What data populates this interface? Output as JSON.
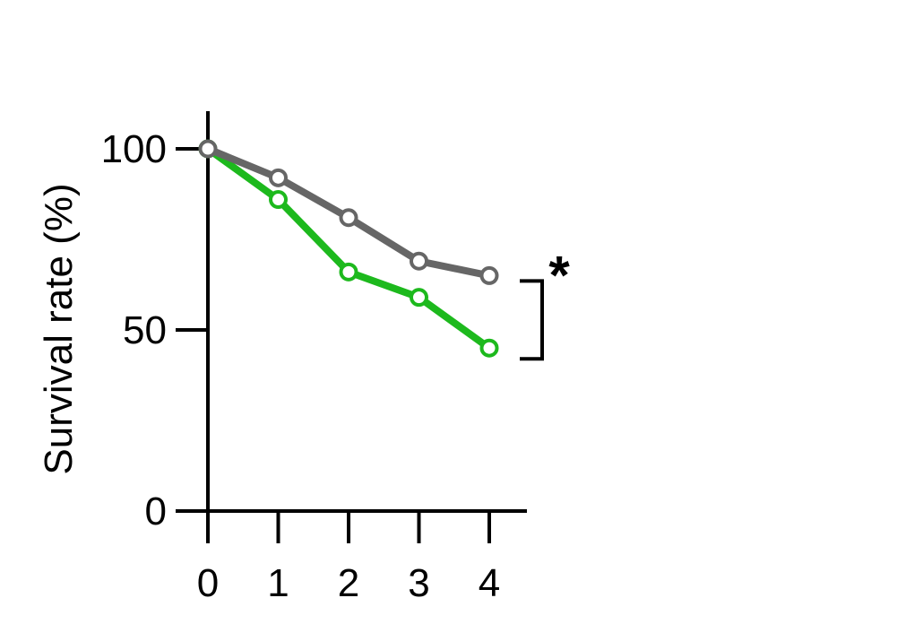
{
  "chart_data": {
    "type": "line",
    "title": "",
    "xlabel": "",
    "ylabel": "Survival rate (%)",
    "x": [
      0,
      1,
      2,
      3,
      4
    ],
    "xlim": [
      0,
      4
    ],
    "ylim": [
      0,
      100
    ],
    "xticks": [
      "0",
      "1",
      "2",
      "3",
      "4"
    ],
    "yticks": [
      "0",
      "50",
      "100"
    ],
    "yticks_values": [
      0,
      50,
      100
    ],
    "grid": false,
    "legend": "none",
    "series": [
      {
        "color": "#666666",
        "values": [
          100,
          92,
          81,
          69,
          65
        ]
      },
      {
        "color": "#1db91d",
        "values": [
          100,
          86,
          66,
          59,
          45
        ]
      }
    ],
    "significance": {
      "label": "*",
      "between_series_at_x": 4
    }
  }
}
